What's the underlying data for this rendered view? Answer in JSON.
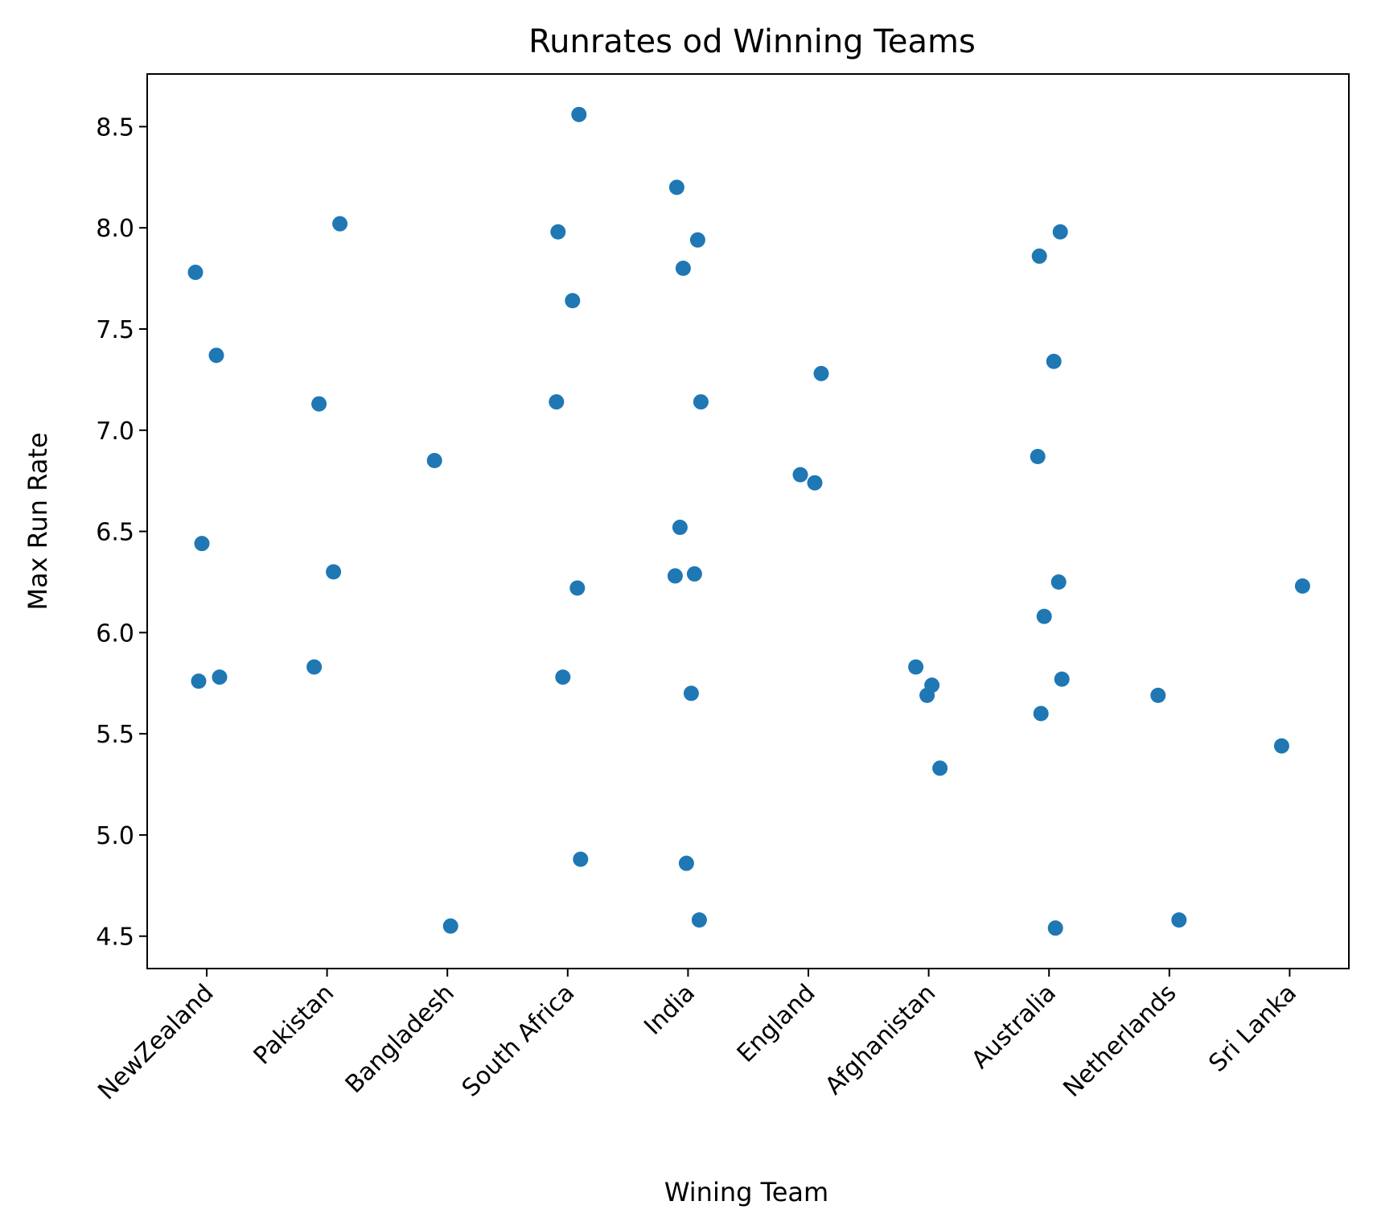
{
  "chart_data": {
    "type": "scatter",
    "title": "Runrates od Winning Teams",
    "xlabel": "Wining Team",
    "ylabel": "Max Run Rate",
    "ylim": [
      4.34,
      8.76
    ],
    "yticks": [
      4.5,
      5.0,
      5.5,
      6.0,
      6.5,
      7.0,
      7.5,
      8.0,
      8.5
    ],
    "ytick_labels": [
      "4.5",
      "5.0",
      "5.5",
      "6.0",
      "6.5",
      "7.0",
      "7.5",
      "8.0",
      "8.5"
    ],
    "categories": [
      "NewZealand",
      "Pakistan",
      "Bangladesh",
      "South Africa",
      "India",
      "England",
      "Afghanistan",
      "Australia",
      "Netherlands",
      "Sri Lanka"
    ],
    "marker_color": "#1f77b4",
    "grid": false,
    "legend": "none",
    "points": [
      {
        "x": "NewZealand",
        "y": 7.78
      },
      {
        "x": "NewZealand",
        "y": 7.37
      },
      {
        "x": "NewZealand",
        "y": 6.44
      },
      {
        "x": "NewZealand",
        "y": 5.78
      },
      {
        "x": "NewZealand",
        "y": 5.76
      },
      {
        "x": "Pakistan",
        "y": 8.02
      },
      {
        "x": "Pakistan",
        "y": 7.13
      },
      {
        "x": "Pakistan",
        "y": 6.3
      },
      {
        "x": "Pakistan",
        "y": 5.83
      },
      {
        "x": "Bangladesh",
        "y": 6.85
      },
      {
        "x": "Bangladesh",
        "y": 4.55
      },
      {
        "x": "South Africa",
        "y": 8.56
      },
      {
        "x": "South Africa",
        "y": 7.98
      },
      {
        "x": "South Africa",
        "y": 7.64
      },
      {
        "x": "South Africa",
        "y": 7.14
      },
      {
        "x": "South Africa",
        "y": 6.22
      },
      {
        "x": "South Africa",
        "y": 5.78
      },
      {
        "x": "South Africa",
        "y": 4.88
      },
      {
        "x": "India",
        "y": 8.2
      },
      {
        "x": "India",
        "y": 7.94
      },
      {
        "x": "India",
        "y": 7.8
      },
      {
        "x": "India",
        "y": 7.14
      },
      {
        "x": "India",
        "y": 6.52
      },
      {
        "x": "India",
        "y": 6.29
      },
      {
        "x": "India",
        "y": 6.28
      },
      {
        "x": "India",
        "y": 5.7
      },
      {
        "x": "India",
        "y": 4.86
      },
      {
        "x": "India",
        "y": 4.58
      },
      {
        "x": "England",
        "y": 7.28
      },
      {
        "x": "England",
        "y": 6.78
      },
      {
        "x": "England",
        "y": 6.74
      },
      {
        "x": "Afghanistan",
        "y": 5.83
      },
      {
        "x": "Afghanistan",
        "y": 5.74
      },
      {
        "x": "Afghanistan",
        "y": 5.69
      },
      {
        "x": "Afghanistan",
        "y": 5.33
      },
      {
        "x": "Australia",
        "y": 7.98
      },
      {
        "x": "Australia",
        "y": 7.86
      },
      {
        "x": "Australia",
        "y": 7.34
      },
      {
        "x": "Australia",
        "y": 6.87
      },
      {
        "x": "Australia",
        "y": 6.25
      },
      {
        "x": "Australia",
        "y": 6.08
      },
      {
        "x": "Australia",
        "y": 5.77
      },
      {
        "x": "Australia",
        "y": 5.6
      },
      {
        "x": "Australia",
        "y": 4.54
      },
      {
        "x": "Netherlands",
        "y": 5.69
      },
      {
        "x": "Netherlands",
        "y": 4.58
      },
      {
        "x": "Sri Lanka",
        "y": 6.23
      },
      {
        "x": "Sri Lanka",
        "y": 5.44
      }
    ]
  }
}
